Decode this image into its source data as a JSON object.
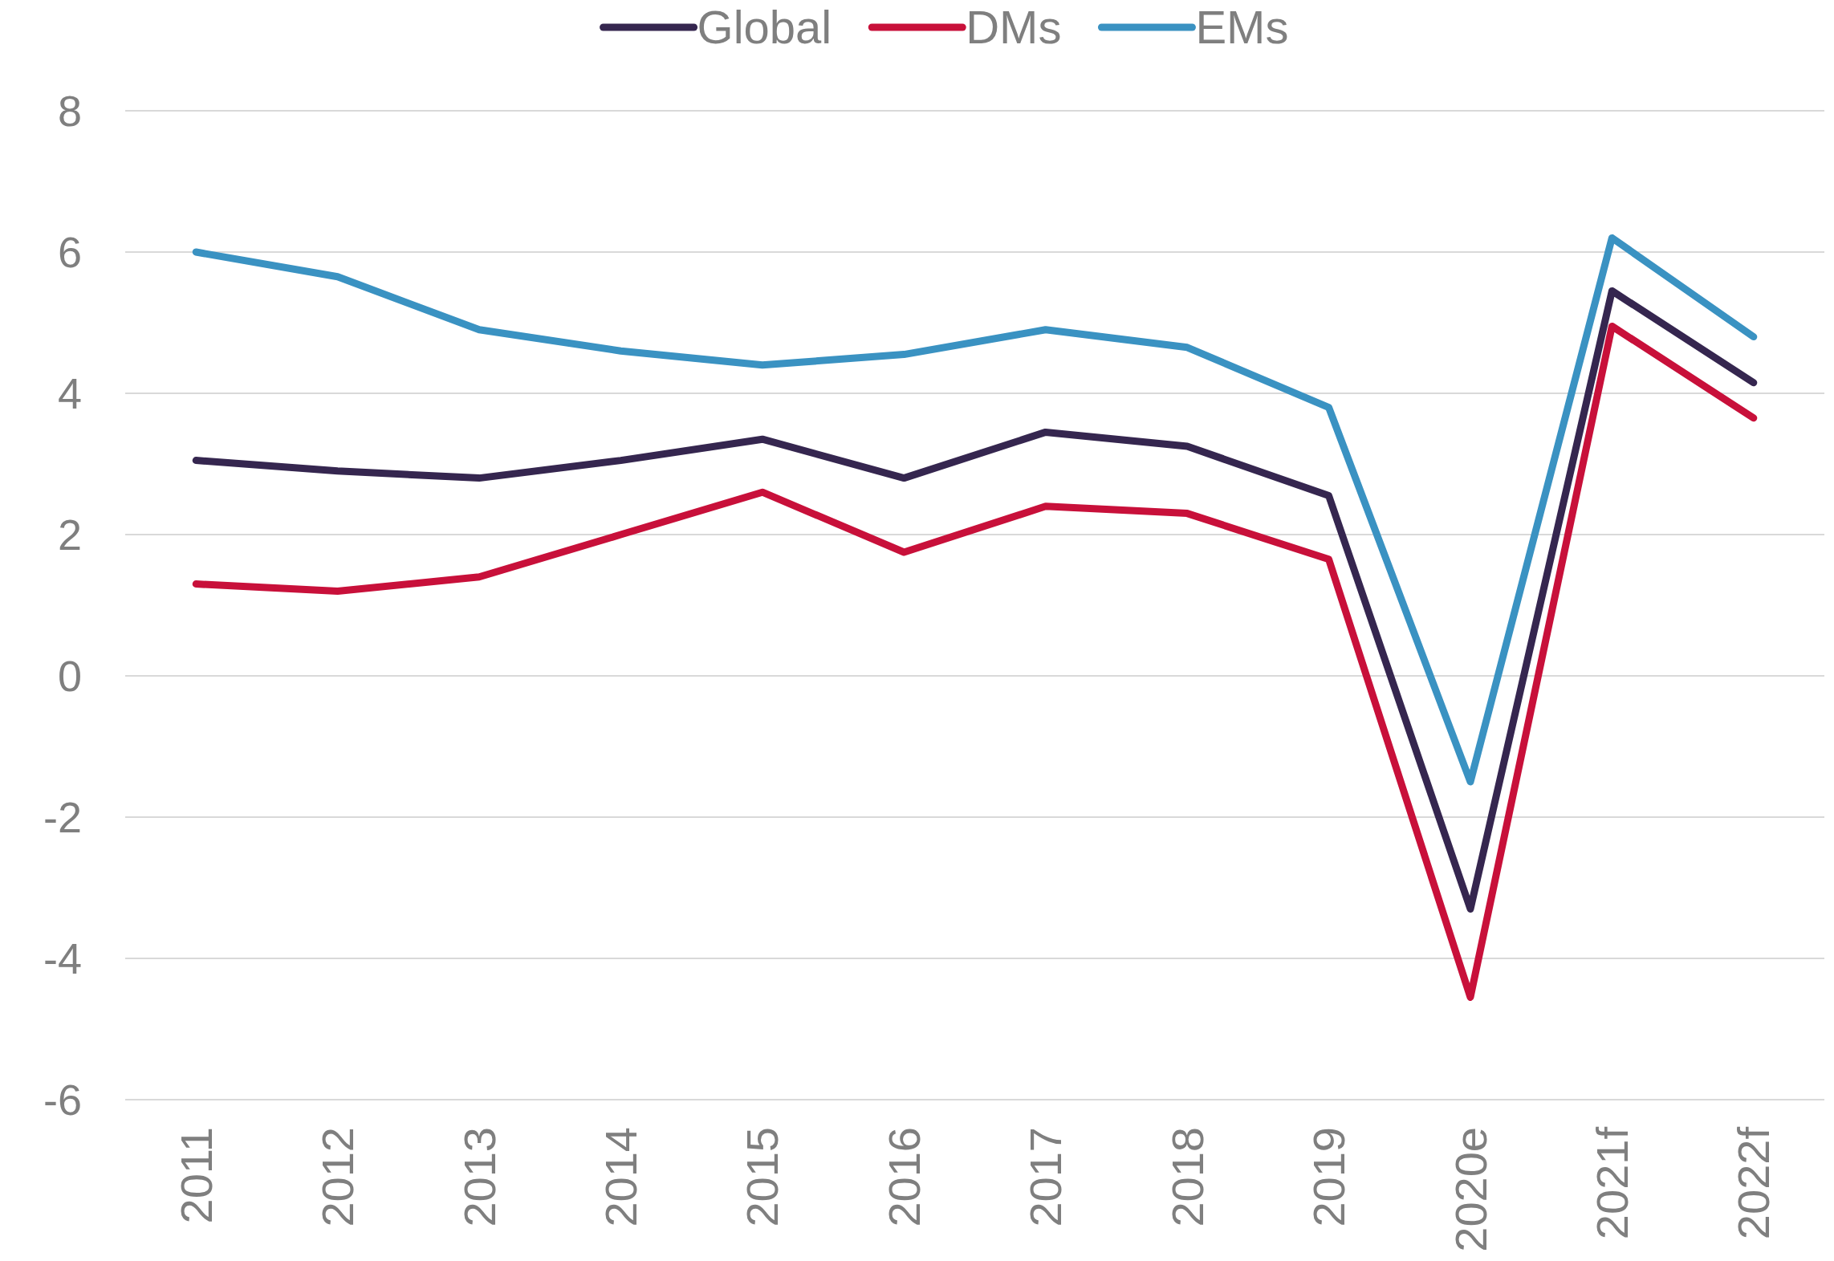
{
  "chart_data": {
    "type": "line",
    "categories": [
      "2011",
      "2012",
      "2013",
      "2014",
      "2015",
      "2016",
      "2017",
      "2018",
      "2019",
      "2020e",
      "2021f",
      "2022f"
    ],
    "series": [
      {
        "name": "Global",
        "color": "#35264f",
        "values": [
          3.05,
          2.9,
          2.8,
          3.05,
          3.35,
          2.8,
          3.45,
          3.25,
          2.55,
          -3.3,
          5.45,
          4.15
        ]
      },
      {
        "name": "DMs",
        "color": "#c8103a",
        "values": [
          1.3,
          1.2,
          1.4,
          2.0,
          2.6,
          1.75,
          2.4,
          2.3,
          1.65,
          -4.55,
          4.95,
          3.65
        ]
      },
      {
        "name": "EMs",
        "color": "#3a92c2",
        "values": [
          6.0,
          5.65,
          4.9,
          4.6,
          4.4,
          4.55,
          4.9,
          4.65,
          3.8,
          -1.5,
          6.2,
          4.8
        ]
      }
    ],
    "ylim": [
      -6,
      8
    ],
    "yticks": [
      -6,
      -4,
      -2,
      0,
      2,
      4,
      6,
      8
    ],
    "grid": "y",
    "legend": "top"
  }
}
